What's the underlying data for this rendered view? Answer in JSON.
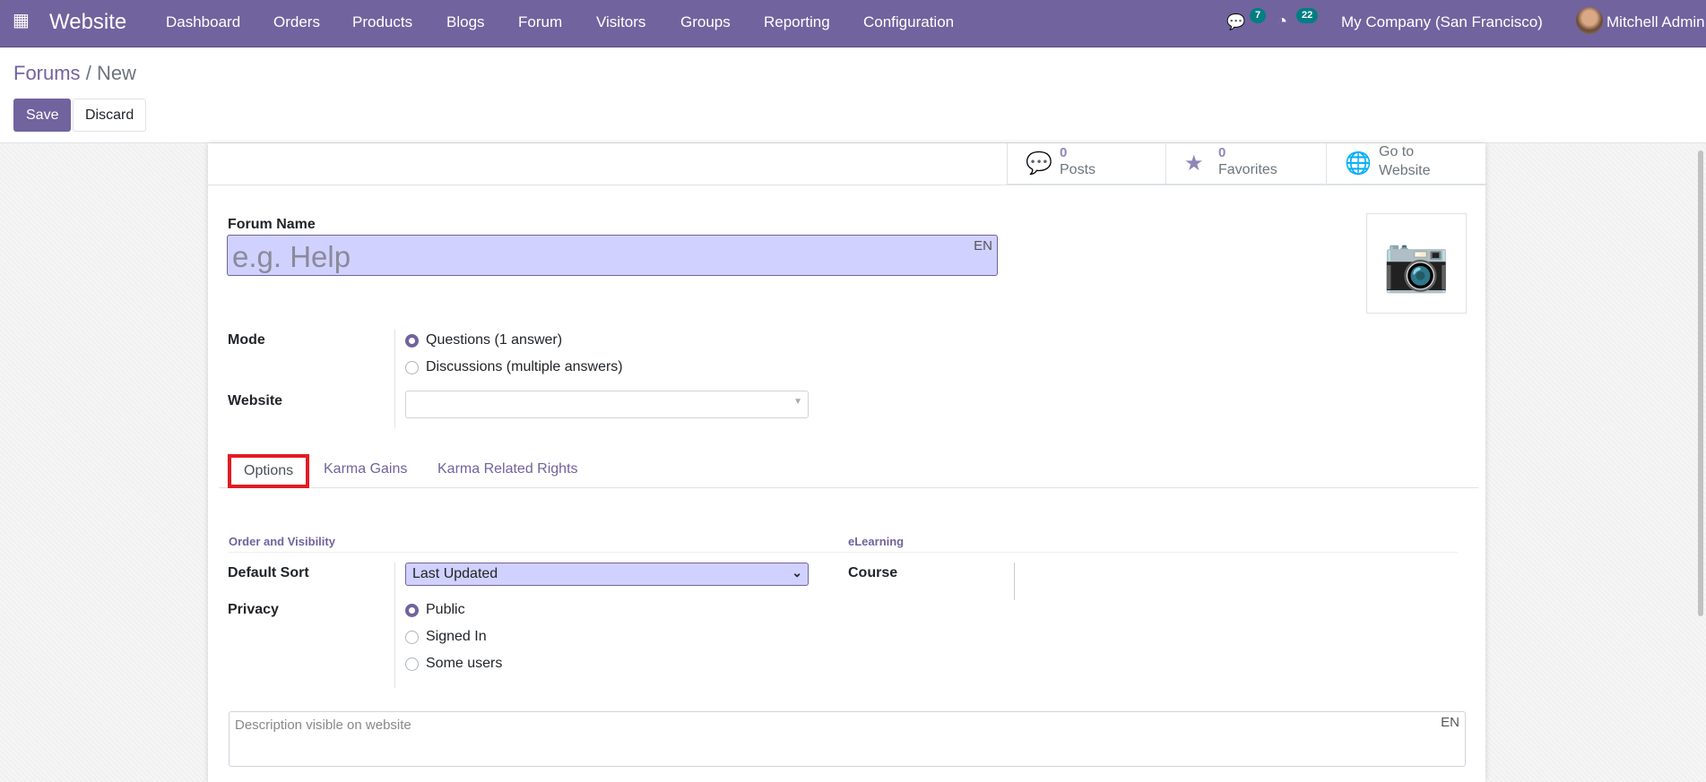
{
  "navbar": {
    "app_name": "Website",
    "menu": [
      "Dashboard",
      "Orders",
      "Products",
      "Blogs",
      "Forum",
      "Visitors",
      "Groups",
      "Reporting",
      "Configuration"
    ],
    "messages_count": "7",
    "activities_count": "22",
    "company": "My Company (San Francisco)",
    "user": "Mitchell Admin",
    "color": "#71639e"
  },
  "breadcrumb": {
    "parent": "Forums",
    "sep": "/",
    "current": "New"
  },
  "actions": {
    "save": "Save",
    "discard": "Discard"
  },
  "stats": [
    {
      "value": "0",
      "label": "Posts",
      "icon": "comments-icon"
    },
    {
      "value": "0",
      "label": "Favorites",
      "icon": "star-icon"
    },
    {
      "line1": "Go to",
      "line2": "Website",
      "icon": "globe-icon"
    }
  ],
  "form": {
    "forum_name_label": "Forum Name",
    "forum_name_placeholder": "e.g. Help",
    "lang": "EN",
    "mode_label": "Mode",
    "mode_options": [
      "Questions (1 answer)",
      "Discussions (multiple answers)"
    ],
    "mode_selected": 0,
    "website_label": "Website",
    "website_value": ""
  },
  "tabs": [
    "Options",
    "Karma Gains",
    "Karma Related Rights"
  ],
  "options": {
    "section1": "Order and Visibility",
    "section2": "eLearning",
    "default_sort_label": "Default Sort",
    "default_sort_value": "Last Updated",
    "privacy_label": "Privacy",
    "privacy_options": [
      "Public",
      "Signed In",
      "Some users"
    ],
    "privacy_selected": 0,
    "course_label": "Course",
    "description_placeholder": "Description visible on website",
    "description_lang": "EN"
  }
}
